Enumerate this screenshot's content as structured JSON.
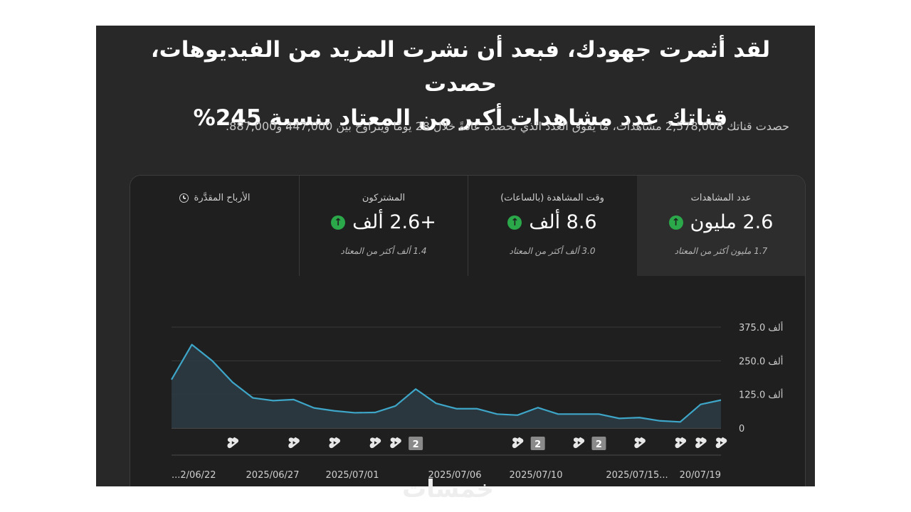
{
  "headline": {
    "line1": "لقد أثمرت جهودك، فبعد أن نشرت المزيد من الفيديوهات، حصدت",
    "line2": "قناتك عدد مشاهدات أكبر من المعتاد بنسبة 245%"
  },
  "subline": "حصدت قناتك 2,578,008 مشاهدات، ما يفوق العدد الذي تحصده عادةً خلال 28 يومًا ويتراوح بين 447,000 و887,000.",
  "metrics": [
    {
      "label": "عدد المشاهدات",
      "value": "2.6 مليون",
      "note": "1.7 مليون أكثر من المعتاد",
      "icon": "arrow-up-icon"
    },
    {
      "label": "وقت المشاهدة (بالساعات)",
      "value": "8.6 ألف",
      "note": "3.0 ألف أكثر من المعتاد",
      "icon": "arrow-up-icon"
    },
    {
      "label": "المشتركون",
      "value": "+2.6 ألف",
      "note": "1.4 ألف أكثر من المعتاد",
      "icon": "arrow-up-icon"
    },
    {
      "label": "الأرباح المقدَّرة",
      "icon": "clock-icon"
    }
  ],
  "colors": {
    "line": "#3ea6c8",
    "up_badge": "#2ba84a",
    "panel": "#1f1f1f",
    "active_panel": "#2d2d2d"
  },
  "watermark": "خمسات",
  "chart_data": {
    "type": "area",
    "y_ticks": [
      "375.0 ألف",
      "250.0 ألف",
      "125.0 ألف",
      "0"
    ],
    "ylim": [
      0,
      375000
    ],
    "x_tick_labels": [
      "...2/06/22",
      "2025/06/27",
      "2025/07/01",
      "2025/07/06",
      "2025/07/10",
      "2025/07/15...",
      "20/07/19"
    ],
    "series": [
      {
        "values": [
          180000,
          310000,
          250000,
          170000,
          112000,
          102000,
          106000,
          75000,
          64000,
          57000,
          58000,
          82000,
          145000,
          92000,
          72000,
          72000,
          52000,
          48000,
          76000,
          52000,
          52000,
          52000,
          36000,
          39000,
          27000,
          23000,
          88000,
          104000
        ]
      }
    ],
    "markers": [
      {
        "index": 3,
        "type": "shorts-icon"
      },
      {
        "index": 6,
        "type": "shorts-icon"
      },
      {
        "index": 8,
        "type": "shorts-icon"
      },
      {
        "index": 10,
        "type": "shorts-icon"
      },
      {
        "index": 11,
        "type": "shorts-icon"
      },
      {
        "index": 12,
        "type": "count-badge",
        "label": "2"
      },
      {
        "index": 17,
        "type": "shorts-icon"
      },
      {
        "index": 18,
        "type": "count-badge",
        "label": "2"
      },
      {
        "index": 20,
        "type": "shorts-icon"
      },
      {
        "index": 21,
        "type": "count-badge",
        "label": "2"
      },
      {
        "index": 23,
        "type": "shorts-icon"
      },
      {
        "index": 25,
        "type": "shorts-icon"
      },
      {
        "index": 26,
        "type": "shorts-icon"
      },
      {
        "index": 27,
        "type": "shorts-icon"
      }
    ]
  }
}
